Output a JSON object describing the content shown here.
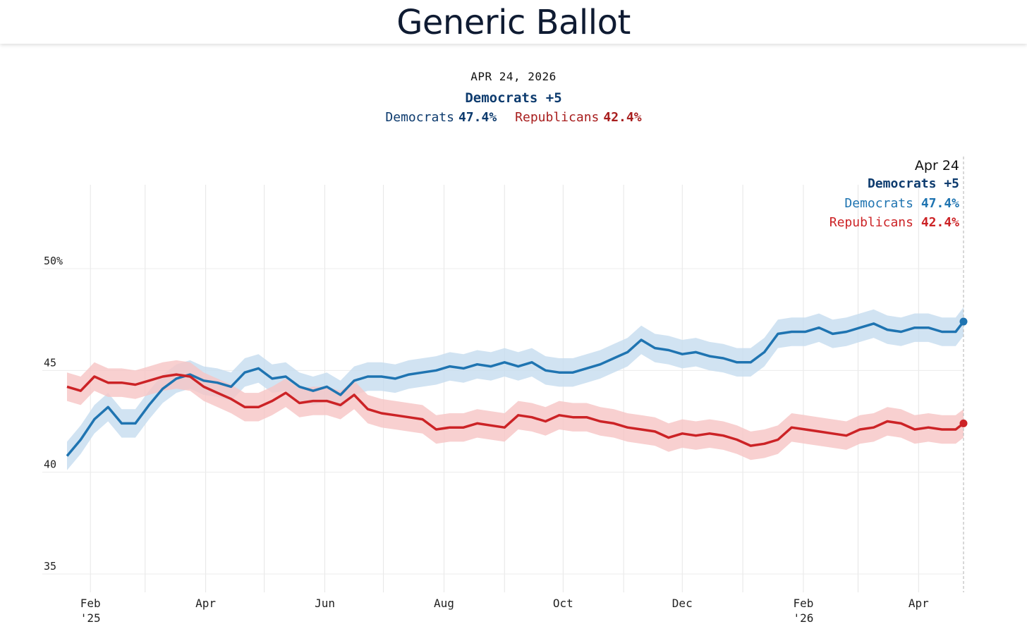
{
  "header": {
    "title": "Generic Ballot"
  },
  "summary": {
    "date": "APR 24, 2026",
    "lead": "Democrats +5",
    "dem_label": "Democrats",
    "dem_value": "47.4%",
    "rep_label": "Republicans",
    "rep_value": "42.4%"
  },
  "tooltip": {
    "date": "Apr 24",
    "lead": "Democrats +5",
    "dem_label": "Democrats",
    "dem_value": "47.4%",
    "rep_label": "Republicans",
    "rep_value": "42.4%"
  },
  "colors": {
    "democrats": "#1f74b1",
    "democrats_band": "#c6dcef",
    "republicans": "#cc2326",
    "republicans_band": "#f6c4c4",
    "grid": "#e6e6e6"
  },
  "chart_data": {
    "type": "line",
    "title": "Generic Ballot",
    "x_range": [
      "2025-01-20",
      "2026-04-24"
    ],
    "ylim": [
      34,
      54
    ],
    "yticks": [
      {
        "value": 35,
        "label": "35"
      },
      {
        "value": 40,
        "label": "40"
      },
      {
        "value": 45,
        "label": "45"
      },
      {
        "value": 50,
        "label": "50%"
      }
    ],
    "xticks": [
      {
        "date": "2025-02-01",
        "label": "Feb",
        "year": "'25"
      },
      {
        "date": "2025-04-01",
        "label": "Apr"
      },
      {
        "date": "2025-06-01",
        "label": "Jun"
      },
      {
        "date": "2025-08-01",
        "label": "Aug"
      },
      {
        "date": "2025-10-01",
        "label": "Oct"
      },
      {
        "date": "2025-12-01",
        "label": "Dec"
      },
      {
        "date": "2026-02-01",
        "label": "Feb",
        "year": "'26"
      },
      {
        "date": "2026-04-01",
        "label": "Apr"
      }
    ],
    "gridlines": [
      "2025-02-01",
      "2025-03-01",
      "2025-04-01",
      "2025-05-01",
      "2025-06-01",
      "2025-07-01",
      "2025-08-01",
      "2025-09-01",
      "2025-10-01",
      "2025-11-01",
      "2025-12-01",
      "2026-01-01",
      "2026-02-01",
      "2026-03-01",
      "2026-04-01"
    ],
    "grid": true,
    "band_halfwidth": 0.7,
    "series": [
      {
        "name": "Democrats",
        "x": [
          "2025-01-20",
          "2025-01-27",
          "2025-02-03",
          "2025-02-10",
          "2025-02-17",
          "2025-02-24",
          "2025-03-03",
          "2025-03-10",
          "2025-03-17",
          "2025-03-24",
          "2025-03-31",
          "2025-04-07",
          "2025-04-14",
          "2025-04-21",
          "2025-04-28",
          "2025-05-05",
          "2025-05-12",
          "2025-05-19",
          "2025-05-26",
          "2025-06-02",
          "2025-06-09",
          "2025-06-16",
          "2025-06-23",
          "2025-06-30",
          "2025-07-07",
          "2025-07-14",
          "2025-07-21",
          "2025-07-28",
          "2025-08-04",
          "2025-08-11",
          "2025-08-18",
          "2025-08-25",
          "2025-09-01",
          "2025-09-08",
          "2025-09-15",
          "2025-09-22",
          "2025-09-29",
          "2025-10-06",
          "2025-10-13",
          "2025-10-20",
          "2025-10-27",
          "2025-11-03",
          "2025-11-10",
          "2025-11-17",
          "2025-11-24",
          "2025-12-01",
          "2025-12-08",
          "2025-12-15",
          "2025-12-22",
          "2025-12-29",
          "2026-01-05",
          "2026-01-12",
          "2026-01-19",
          "2026-01-26",
          "2026-02-02",
          "2026-02-09",
          "2026-02-16",
          "2026-02-23",
          "2026-03-02",
          "2026-03-09",
          "2026-03-16",
          "2026-03-23",
          "2026-03-30",
          "2026-04-06",
          "2026-04-13",
          "2026-04-20",
          "2026-04-24"
        ],
        "values": [
          40.8,
          41.6,
          42.6,
          43.2,
          42.4,
          42.4,
          43.3,
          44.1,
          44.6,
          44.8,
          44.5,
          44.4,
          44.2,
          44.9,
          45.1,
          44.6,
          44.7,
          44.2,
          44.0,
          44.2,
          43.8,
          44.5,
          44.7,
          44.7,
          44.6,
          44.8,
          44.9,
          45.0,
          45.2,
          45.1,
          45.3,
          45.2,
          45.4,
          45.2,
          45.4,
          45.0,
          44.9,
          44.9,
          45.1,
          45.3,
          45.6,
          45.9,
          46.5,
          46.1,
          46.0,
          45.8,
          45.9,
          45.7,
          45.6,
          45.4,
          45.4,
          45.9,
          46.8,
          46.9,
          46.9,
          47.1,
          46.8,
          46.9,
          47.1,
          47.3,
          47.0,
          46.9,
          47.1,
          47.1,
          46.9,
          46.9,
          47.4
        ]
      },
      {
        "name": "Republicans",
        "x": [
          "2025-01-20",
          "2025-01-27",
          "2025-02-03",
          "2025-02-10",
          "2025-02-17",
          "2025-02-24",
          "2025-03-03",
          "2025-03-10",
          "2025-03-17",
          "2025-03-24",
          "2025-03-31",
          "2025-04-07",
          "2025-04-14",
          "2025-04-21",
          "2025-04-28",
          "2025-05-05",
          "2025-05-12",
          "2025-05-19",
          "2025-05-26",
          "2025-06-02",
          "2025-06-09",
          "2025-06-16",
          "2025-06-23",
          "2025-06-30",
          "2025-07-07",
          "2025-07-14",
          "2025-07-21",
          "2025-07-28",
          "2025-08-04",
          "2025-08-11",
          "2025-08-18",
          "2025-08-25",
          "2025-09-01",
          "2025-09-08",
          "2025-09-15",
          "2025-09-22",
          "2025-09-29",
          "2025-10-06",
          "2025-10-13",
          "2025-10-20",
          "2025-10-27",
          "2025-11-03",
          "2025-11-10",
          "2025-11-17",
          "2025-11-24",
          "2025-12-01",
          "2025-12-08",
          "2025-12-15",
          "2025-12-22",
          "2025-12-29",
          "2026-01-05",
          "2026-01-12",
          "2026-01-19",
          "2026-01-26",
          "2026-02-02",
          "2026-02-09",
          "2026-02-16",
          "2026-02-23",
          "2026-03-02",
          "2026-03-09",
          "2026-03-16",
          "2026-03-23",
          "2026-03-30",
          "2026-04-06",
          "2026-04-13",
          "2026-04-20",
          "2026-04-24"
        ],
        "values": [
          44.2,
          44.0,
          44.7,
          44.4,
          44.4,
          44.3,
          44.5,
          44.7,
          44.8,
          44.7,
          44.2,
          43.9,
          43.6,
          43.2,
          43.2,
          43.5,
          43.9,
          43.4,
          43.5,
          43.5,
          43.3,
          43.8,
          43.1,
          42.9,
          42.8,
          42.7,
          42.6,
          42.1,
          42.2,
          42.2,
          42.4,
          42.3,
          42.2,
          42.8,
          42.7,
          42.5,
          42.8,
          42.7,
          42.7,
          42.5,
          42.4,
          42.2,
          42.1,
          42.0,
          41.7,
          41.9,
          41.8,
          41.9,
          41.8,
          41.6,
          41.3,
          41.4,
          41.6,
          42.2,
          42.1,
          42.0,
          41.9,
          41.8,
          42.1,
          42.2,
          42.5,
          42.4,
          42.1,
          42.2,
          42.1,
          42.1,
          42.4
        ]
      }
    ],
    "final": {
      "date": "2026-04-24",
      "democrats": 47.4,
      "republicans": 42.4
    }
  }
}
